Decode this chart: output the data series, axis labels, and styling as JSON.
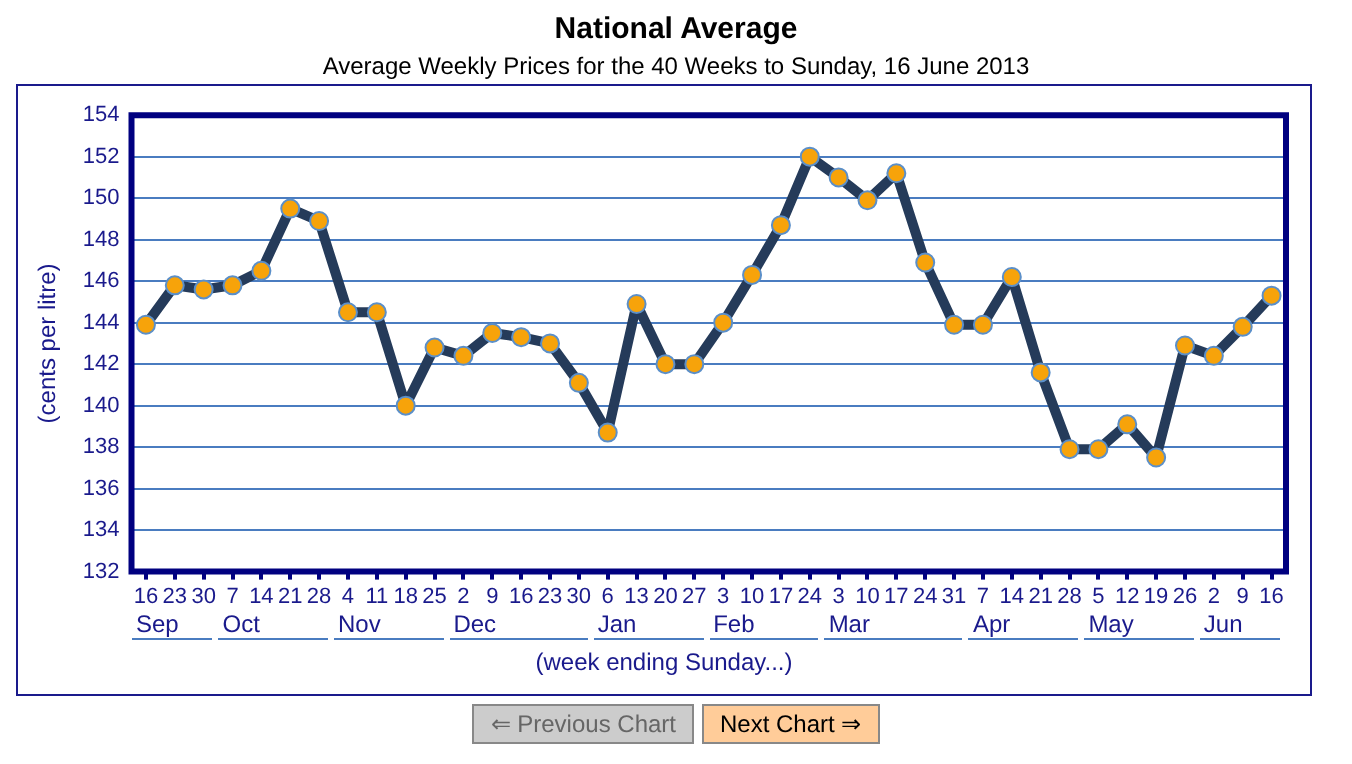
{
  "chart_data": {
    "type": "line",
    "title": "National Average",
    "subtitle": "Average Weekly Prices for the 40 Weeks to Sunday, 16 June 2013",
    "xlabel": "(week ending Sunday...)",
    "ylabel": "(cents per litre)",
    "categories": [
      "16",
      "23",
      "30",
      "7",
      "14",
      "21",
      "28",
      "4",
      "11",
      "18",
      "25",
      "2",
      "9",
      "16",
      "23",
      "30",
      "6",
      "13",
      "20",
      "27",
      "3",
      "10",
      "17",
      "24",
      "3",
      "10",
      "17",
      "24",
      "31",
      "7",
      "14",
      "21",
      "28",
      "5",
      "12",
      "19",
      "26",
      "2",
      "9",
      "16"
    ],
    "series": [
      {
        "color": "#253b5a",
        "values": [
          143.9,
          145.8,
          145.6,
          145.8,
          146.5,
          149.5,
          148.9,
          144.5,
          144.5,
          140.0,
          142.8,
          142.4,
          143.5,
          143.3,
          143.0,
          141.1,
          138.7,
          144.9,
          142.0,
          142.0,
          144.0,
          146.3,
          148.7,
          152.0,
          151.0,
          149.9,
          151.2,
          146.9,
          143.9,
          143.9,
          146.2,
          141.6,
          137.9,
          137.9,
          139.1,
          137.5,
          142.9,
          142.4,
          143.8,
          145.3
        ]
      }
    ],
    "ylim": [
      132,
      154
    ],
    "yticks": [
      132,
      134,
      136,
      138,
      140,
      142,
      144,
      146,
      148,
      150,
      152,
      154
    ],
    "grid": "y",
    "legend": false,
    "marker": "circle",
    "line_style": "solid",
    "annotations": [
      "Sep",
      "Oct",
      "Nov",
      "Dec",
      "Jan",
      "Feb",
      "Mar",
      "Apr",
      "May",
      "Jun",
      "⇐ Previous Chart",
      "Next Chart ⇒"
    ]
  }
}
